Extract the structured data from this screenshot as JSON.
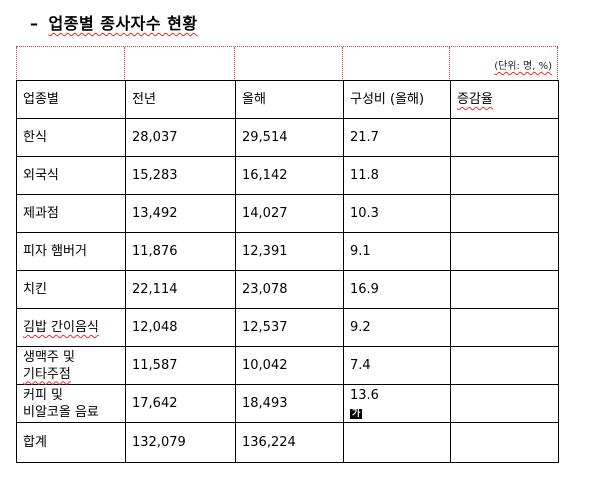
{
  "title": {
    "dash": "–",
    "text": "업종별 종사자수 현황"
  },
  "unit_note": "(단위: 명, %)",
  "columns": [
    "업종별",
    "전년",
    "올해",
    "구성비 (올해)",
    "증감율"
  ],
  "rows": [
    {
      "industry": "한식",
      "prev": "28,037",
      "curr": "29,514",
      "ratio": "21.7",
      "change": ""
    },
    {
      "industry": "외국식",
      "prev": "15,283",
      "curr": "16,142",
      "ratio": "11.8",
      "change": ""
    },
    {
      "industry": "제과점",
      "prev": "13,492",
      "curr": "14,027",
      "ratio": "10.3",
      "change": ""
    },
    {
      "industry": "피자 햄버거",
      "prev": "11,876",
      "curr": "12,391",
      "ratio": "9.1",
      "change": ""
    },
    {
      "industry": "치킨",
      "prev": "22,114",
      "curr": "23,078",
      "ratio": "16.9",
      "change": ""
    },
    {
      "industry": "김밥 간이음식",
      "prev": "12,048",
      "curr": "12,537",
      "ratio": "9.2",
      "change": ""
    },
    {
      "industry_line1": "생맥주 및",
      "industry_line2": "기타주점",
      "prev": "11,587",
      "curr": "10,042",
      "ratio": "7.4",
      "change": ""
    },
    {
      "industry_line1": "커피 및",
      "industry_line2": "비알코올 음료",
      "prev": "17,642",
      "curr": "18,493",
      "ratio": "13.6",
      "change": "",
      "cursor_label": "가"
    },
    {
      "industry": "합계",
      "prev": "132,079",
      "curr": "136,224",
      "ratio": "",
      "change": ""
    }
  ]
}
